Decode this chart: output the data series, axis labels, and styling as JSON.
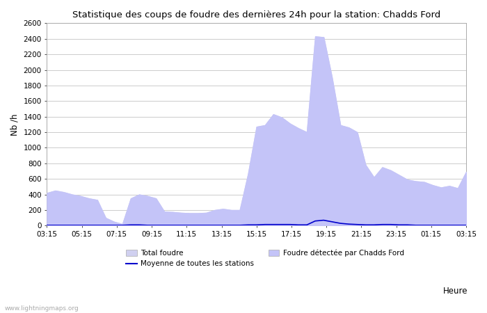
{
  "title": "Statistique des coups de foudre des dernières 24h pour la station: Chadds Ford",
  "ylabel": "Nb /h",
  "xlabel": "Heure",
  "watermark": "www.lightningmaps.org",
  "xlim_labels": [
    "03:15",
    "05:15",
    "07:15",
    "09:15",
    "11:15",
    "13:15",
    "15:15",
    "17:15",
    "19:15",
    "21:15",
    "23:15",
    "01:15",
    "03:15"
  ],
  "ylim": [
    0,
    2600
  ],
  "yticks": [
    0,
    200,
    400,
    600,
    800,
    1000,
    1200,
    1400,
    1600,
    1800,
    2000,
    2200,
    2400,
    2600
  ],
  "bg_color": "#ffffff",
  "grid_color": "#cccccc",
  "fill_color_total": "#d0d0f0",
  "fill_color_detected": "#c4c4f8",
  "line_color_mean": "#0000cc",
  "legend_total": "Total foudre",
  "legend_mean": "Moyenne de toutes les stations",
  "legend_detected": "Foudre détectée par Chadds Ford",
  "total_foudre": [
    420,
    450,
    430,
    400,
    380,
    350,
    330,
    100,
    50,
    20,
    350,
    400,
    380,
    350,
    180,
    175,
    165,
    160,
    160,
    165,
    200,
    215,
    200,
    200,
    670,
    1270,
    1290,
    1430,
    1390,
    1310,
    1250,
    1200,
    2430,
    2420,
    1900,
    1290,
    1260,
    1200,
    780,
    620,
    750,
    710,
    650,
    590,
    570,
    560,
    520,
    490,
    510,
    480,
    690
  ],
  "detected_foudre": [
    420,
    450,
    430,
    400,
    380,
    350,
    330,
    100,
    50,
    20,
    350,
    400,
    380,
    350,
    180,
    175,
    165,
    160,
    160,
    165,
    200,
    215,
    200,
    200,
    670,
    1270,
    1290,
    1430,
    1390,
    1310,
    1250,
    1200,
    2430,
    2420,
    1900,
    1290,
    1260,
    1200,
    780,
    620,
    750,
    710,
    650,
    590,
    570,
    560,
    520,
    490,
    510,
    480,
    690
  ],
  "mean_stations": [
    5,
    5,
    5,
    5,
    5,
    5,
    5,
    5,
    5,
    5,
    10,
    10,
    5,
    5,
    5,
    5,
    5,
    5,
    5,
    5,
    5,
    5,
    5,
    5,
    10,
    10,
    15,
    15,
    15,
    15,
    10,
    10,
    60,
    70,
    50,
    30,
    20,
    15,
    10,
    10,
    15,
    15,
    10,
    10,
    5,
    5,
    5,
    5,
    5,
    5,
    5
  ]
}
